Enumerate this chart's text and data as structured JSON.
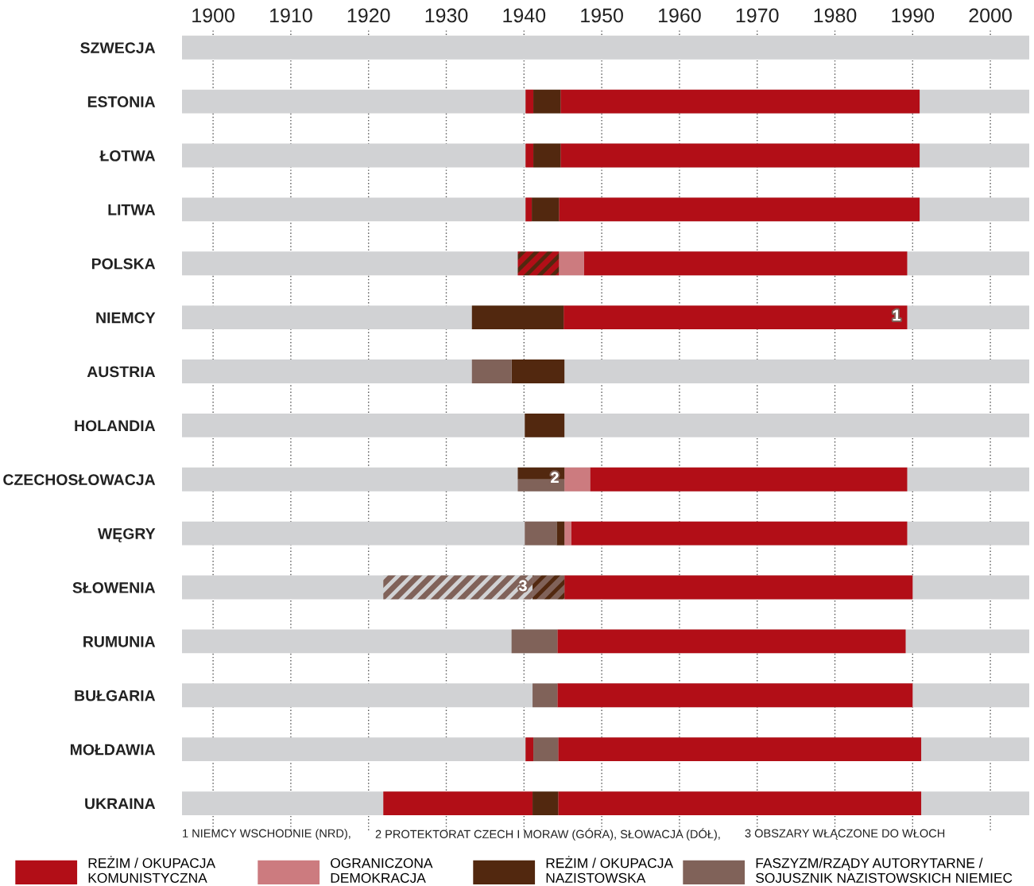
{
  "chart_data": {
    "type": "bar",
    "orientation": "horizontal",
    "categories": [
      "SZWECJA",
      "ESTONIA",
      "ŁOTWA",
      "LITWA",
      "POLSKA",
      "NIEMCY",
      "AUSTRIA",
      "HOLANDIA",
      "CZECHOSŁOWACJA",
      "WĘGRY",
      "SŁOWENIA",
      "RUMUNIA",
      "BUŁGARIA",
      "MOŁDAWIA",
      "UKRAINA"
    ],
    "xlim": [
      1896,
      2005
    ],
    "xticks": [
      1900,
      1910,
      1920,
      1930,
      1940,
      1950,
      1960,
      1970,
      1980,
      1990,
      2000
    ],
    "grid": "x",
    "legend": "bottom",
    "series": [
      {
        "color": "#d1d2d4",
        "base": [
          1896,
          1896,
          1896,
          1896,
          1896,
          1896,
          1896,
          1896,
          1896,
          1896,
          1896,
          1896,
          1896,
          1896,
          1896
        ],
        "values": [
          109,
          109,
          109,
          109,
          109,
          109,
          109,
          109,
          109,
          109,
          109,
          109,
          109,
          109,
          109
        ]
      },
      {
        "name": "REŻIM / OKUPACJA\nKOMUNISTYCZNA",
        "color": "#b20e17",
        "base": [
          null,
          1940.2,
          1940.2,
          1940.2,
          1947.7,
          1945.1,
          null,
          null,
          1948.5,
          1946.1,
          1945.2,
          1944.3,
          1944.3,
          1940.2,
          1921.9
        ],
        "values": [
          null,
          1.0,
          1.0,
          0.8,
          41.6,
          44.2,
          null,
          null,
          40.8,
          43.2,
          44.8,
          44.8,
          45.7,
          1.0,
          19.2
        ]
      },
      {
        "color": "#b20e17",
        "base": [
          null,
          1944.7,
          1944.7,
          1944.5,
          null,
          null,
          null,
          null,
          null,
          null,
          null,
          null,
          null,
          1944.4,
          1944.4
        ],
        "values": [
          null,
          46.2,
          46.2,
          46.4,
          null,
          null,
          null,
          null,
          null,
          null,
          null,
          null,
          null,
          46.7,
          46.7
        ]
      },
      {
        "name": "OGRANICZONA\nDEMOKRACJA",
        "color": "#cc7b7f",
        "base": [
          null,
          null,
          null,
          null,
          1944.5,
          null,
          null,
          null,
          1945.2,
          1945.2,
          null,
          null,
          null,
          null,
          null
        ],
        "values": [
          null,
          null,
          null,
          null,
          3.2,
          null,
          null,
          null,
          3.3,
          0.9,
          null,
          null,
          null,
          null,
          null
        ]
      },
      {
        "name": "REŻIM / OKUPACJA\nNAZISTOWSKA",
        "color": "#52280f",
        "base": [
          null,
          1941.2,
          1941.2,
          1941.0,
          null,
          1933.3,
          1938.4,
          1940.1,
          1939.2,
          1944.2,
          null,
          null,
          null,
          null,
          1941.1
        ],
        "values": [
          null,
          3.5,
          3.5,
          3.5,
          null,
          11.8,
          6.8,
          5.1,
          6.0,
          1.0,
          null,
          null,
          null,
          null,
          3.3
        ]
      },
      {
        "name": "FASZYZM/RZĄDY AUTORYTARNE /\nSOJUSZNIK NAZISTOWSKICH NIEMIEC",
        "color": "#806259",
        "base": [
          null,
          null,
          null,
          null,
          null,
          null,
          1933.3,
          null,
          1939.2,
          1940.1,
          null,
          1938.4,
          1941.1,
          1941.2,
          null
        ],
        "values": [
          null,
          null,
          null,
          null,
          null,
          null,
          5.1,
          null,
          6.0,
          4.1,
          null,
          5.9,
          3.2,
          3.2,
          null
        ]
      },
      {
        "colors": [
          null,
          null,
          null,
          null,
          [
            "#52280f",
            "#b20e17"
          ],
          null,
          null,
          null,
          null,
          null,
          [
            "#d1d2d4",
            "#806259"
          ],
          null,
          null,
          null,
          null
        ],
        "base": [
          null,
          null,
          null,
          null,
          1939.2,
          null,
          null,
          null,
          null,
          null,
          1921.9,
          null,
          null,
          null,
          null
        ],
        "values": [
          null,
          null,
          null,
          null,
          5.3,
          null,
          null,
          null,
          null,
          null,
          19.2,
          null,
          null,
          null,
          null
        ]
      },
      {
        "colors": [
          null,
          null,
          null,
          null,
          null,
          null,
          null,
          null,
          null,
          null,
          [
            "#52280f",
            "#806259"
          ],
          null,
          null,
          null,
          null
        ],
        "base": [
          null,
          null,
          null,
          null,
          null,
          null,
          null,
          null,
          null,
          null,
          1941.1,
          null,
          null,
          null,
          null
        ],
        "values": [
          null,
          null,
          null,
          null,
          null,
          null,
          null,
          null,
          null,
          null,
          4.1,
          null,
          null,
          null,
          null
        ]
      }
    ],
    "annotations": [
      "1",
      "2",
      "3",
      "1 NIEMCY WSCHODNIE (NRD),",
      "2 PROTEKTORAT CZECH I MORAW (GÓRA), SŁOWACJA (DÓŁ),",
      "3 OBSZARY WŁĄCZONE DO WŁOCH"
    ]
  }
}
